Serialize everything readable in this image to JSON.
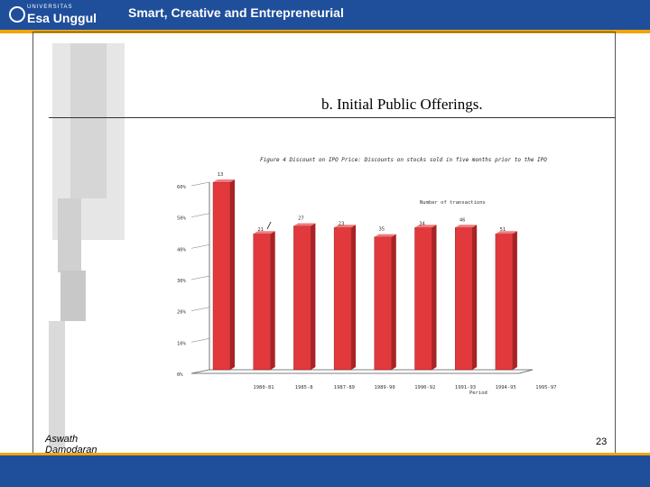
{
  "header": {
    "logo_small_text": "UNIVERSITAS",
    "logo_name": "Esa Unggul",
    "tagline": "Smart, Creative and Entrepreneurial"
  },
  "slide": {
    "title": "b. Initial Public Offerings.",
    "author_line1": "Aswath",
    "author_line2": "Damodaran",
    "page_number": "23"
  },
  "colors": {
    "header_blue": "#1f4e9b",
    "accent_orange": "#f2a500",
    "bar_red": "#e2393c"
  },
  "chart_data": {
    "type": "bar",
    "title": "Figure 4 Discount on IPO Price: Discounts on stocks sold in five months prior to the IPO",
    "xlabel": "Period",
    "ylabel": "",
    "annotation": "Number of transactions",
    "categories": [
      "1980-81",
      "1985-8",
      "1987-89",
      "1989-90",
      "1990-92",
      "1991-93",
      "1994-95",
      "1995-97"
    ],
    "values": [
      60,
      43.5,
      46,
      45.5,
      42.5,
      45.5,
      45.5,
      43.5
    ],
    "transactions": [
      "13",
      "21",
      "27",
      "23",
      "35",
      "34",
      "46",
      "51"
    ],
    "yticks": [
      "0%",
      "10%",
      "20%",
      "30%",
      "40%",
      "50%",
      "60%"
    ],
    "ylim": [
      0,
      60
    ],
    "grid": false,
    "legend": "none"
  }
}
